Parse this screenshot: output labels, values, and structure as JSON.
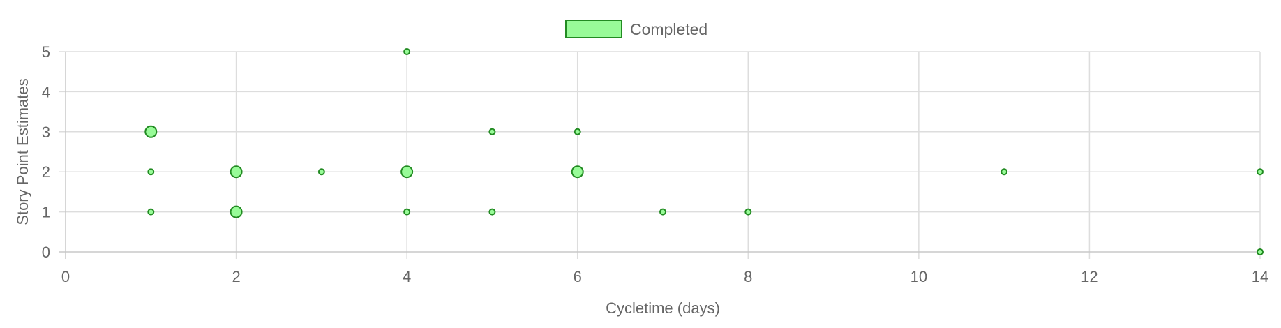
{
  "chart_data": {
    "type": "scatter",
    "title": "",
    "xlabel": "Cycletime (days)",
    "ylabel": "Story Point Estimates",
    "xlim": [
      0,
      14
    ],
    "ylim": [
      0,
      5
    ],
    "x_ticks": [
      "0",
      "2",
      "4",
      "6",
      "8",
      "10",
      "12",
      "14"
    ],
    "y_ticks": [
      "0",
      "1",
      "2",
      "3",
      "4",
      "5"
    ],
    "grid": true,
    "legend_position": "top",
    "series": [
      {
        "name": "Completed",
        "fill_color": "#98fb98",
        "border_color": "#228b22",
        "points": [
          {
            "x": 1,
            "y": 3,
            "count": 2
          },
          {
            "x": 1,
            "y": 2,
            "count": 1
          },
          {
            "x": 1,
            "y": 1,
            "count": 1
          },
          {
            "x": 2,
            "y": 2,
            "count": 2
          },
          {
            "x": 2,
            "y": 1,
            "count": 2
          },
          {
            "x": 3,
            "y": 2,
            "count": 1
          },
          {
            "x": 4,
            "y": 5,
            "count": 1
          },
          {
            "x": 4,
            "y": 2,
            "count": 2
          },
          {
            "x": 4,
            "y": 1,
            "count": 1
          },
          {
            "x": 5,
            "y": 3,
            "count": 1
          },
          {
            "x": 5,
            "y": 1,
            "count": 1
          },
          {
            "x": 6,
            "y": 3,
            "count": 1
          },
          {
            "x": 6,
            "y": 2,
            "count": 2
          },
          {
            "x": 7,
            "y": 1,
            "count": 1
          },
          {
            "x": 8,
            "y": 1,
            "count": 1
          },
          {
            "x": 11,
            "y": 2,
            "count": 1
          },
          {
            "x": 14,
            "y": 2,
            "count": 1
          },
          {
            "x": 14,
            "y": 0,
            "count": 1
          }
        ]
      }
    ]
  }
}
